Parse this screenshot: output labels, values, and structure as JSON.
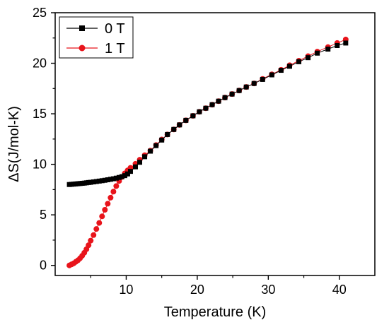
{
  "chart_data": {
    "type": "line",
    "title": "",
    "xlabel": "Temperature (K)",
    "ylabel": "ΔS(J/mol-K)",
    "xlim": [
      0,
      45
    ],
    "ylim": [
      -1,
      25
    ],
    "xticks": [
      10,
      20,
      30,
      40
    ],
    "xtick_labels": [
      "10",
      "20",
      "30",
      "40"
    ],
    "yticks": [
      0,
      5,
      10,
      15,
      20,
      25
    ],
    "ytick_labels": [
      "0",
      "5",
      "10",
      "15",
      "20",
      "25"
    ],
    "grid": false,
    "legend_position": "top-left",
    "series": [
      {
        "name": "0 T",
        "color": "#000000",
        "marker": "square",
        "x": [
          2.0,
          2.3,
          2.6,
          2.9,
          3.2,
          3.5,
          3.8,
          4.1,
          4.4,
          4.7,
          5.0,
          5.4,
          5.8,
          6.2,
          6.6,
          7.0,
          7.4,
          7.8,
          8.2,
          8.6,
          9.0,
          9.4,
          9.8,
          10.2,
          10.6,
          11.3,
          11.9,
          12.6,
          13.4,
          14.2,
          15.0,
          15.8,
          16.7,
          17.5,
          18.4,
          19.4,
          20.3,
          21.2,
          22.1,
          23.0,
          23.9,
          24.9,
          25.9,
          26.9,
          28.0,
          29.2,
          30.5,
          31.8,
          33.0,
          34.3,
          35.6,
          36.9,
          38.4,
          39.7,
          40.9
        ],
        "y": [
          8.0,
          8.02,
          8.04,
          8.06,
          8.08,
          8.1,
          8.12,
          8.14,
          8.17,
          8.2,
          8.22,
          8.26,
          8.3,
          8.34,
          8.38,
          8.42,
          8.47,
          8.52,
          8.57,
          8.63,
          8.7,
          8.78,
          8.88,
          9.05,
          9.3,
          9.75,
          10.2,
          10.75,
          11.3,
          11.85,
          12.4,
          12.95,
          13.45,
          13.9,
          14.35,
          14.8,
          15.2,
          15.55,
          15.9,
          16.25,
          16.6,
          16.95,
          17.3,
          17.65,
          18.0,
          18.4,
          18.85,
          19.3,
          19.7,
          20.15,
          20.55,
          21.0,
          21.4,
          21.75,
          22.0
        ]
      },
      {
        "name": "1 T",
        "color": "#e8141b",
        "marker": "circle",
        "x": [
          2.0,
          2.3,
          2.6,
          2.9,
          3.2,
          3.5,
          3.8,
          4.1,
          4.4,
          4.7,
          5.0,
          5.4,
          5.8,
          6.2,
          6.6,
          7.0,
          7.4,
          7.8,
          8.2,
          8.6,
          9.0,
          9.4,
          9.8,
          10.2,
          10.6,
          11.3,
          11.9,
          12.6,
          13.4,
          14.2,
          15.0,
          15.8,
          16.7,
          17.5,
          18.4,
          19.4,
          20.3,
          21.2,
          22.1,
          23.0,
          23.9,
          24.9,
          25.9,
          26.9,
          28.0,
          29.2,
          30.5,
          31.8,
          33.0,
          34.3,
          35.6,
          36.9,
          38.4,
          39.7,
          40.9
        ],
        "y": [
          0.0,
          0.1,
          0.2,
          0.35,
          0.5,
          0.7,
          0.95,
          1.25,
          1.6,
          2.0,
          2.45,
          3.0,
          3.6,
          4.2,
          4.85,
          5.5,
          6.1,
          6.7,
          7.3,
          7.85,
          8.35,
          8.75,
          9.1,
          9.4,
          9.65,
          10.05,
          10.45,
          10.9,
          11.35,
          11.9,
          12.45,
          12.95,
          13.45,
          13.9,
          14.35,
          14.8,
          15.2,
          15.55,
          15.9,
          16.25,
          16.6,
          16.95,
          17.3,
          17.65,
          18.0,
          18.45,
          18.9,
          19.35,
          19.8,
          20.25,
          20.7,
          21.15,
          21.6,
          22.0,
          22.35
        ]
      }
    ]
  }
}
